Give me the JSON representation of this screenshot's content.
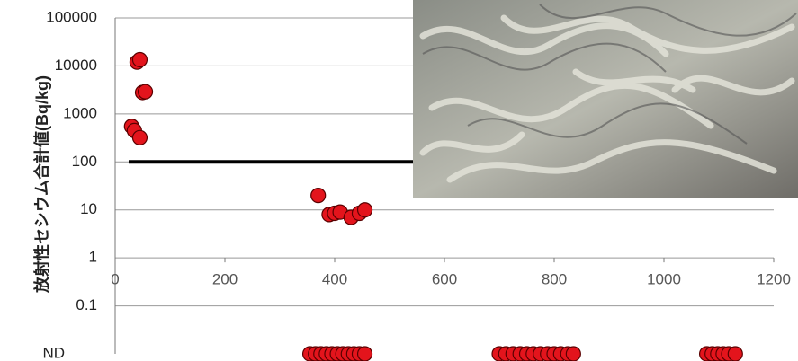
{
  "chart_data": {
    "type": "scatter",
    "y_label": "放射性セシウム合計値(Bq/kg)",
    "log_scale_y": true,
    "grid": true,
    "color": "#e3141c",
    "xlim": [
      0,
      1200
    ],
    "xticks": [
      0,
      200,
      400,
      600,
      800,
      1000,
      1200
    ],
    "ylim": [
      0.01,
      100000
    ],
    "yticks": [
      100000,
      10000,
      1000,
      100,
      10,
      1,
      0.1
    ],
    "nd_label": "ND",
    "threshold": 100,
    "x": [
      40,
      45,
      50,
      55,
      30,
      35,
      45,
      370,
      390,
      400,
      410,
      430,
      445,
      455
    ],
    "values": [
      12000,
      13500,
      2800,
      2900,
      550,
      450,
      320,
      20,
      8,
      8.5,
      9,
      7,
      8.5,
      10
    ],
    "nd_x": [
      355,
      365,
      375,
      385,
      395,
      405,
      415,
      425,
      435,
      445,
      455,
      700,
      712,
      725,
      738,
      750,
      762,
      775,
      788,
      800,
      812,
      825,
      835,
      1078,
      1088,
      1098,
      1108,
      1118,
      1130
    ]
  }
}
